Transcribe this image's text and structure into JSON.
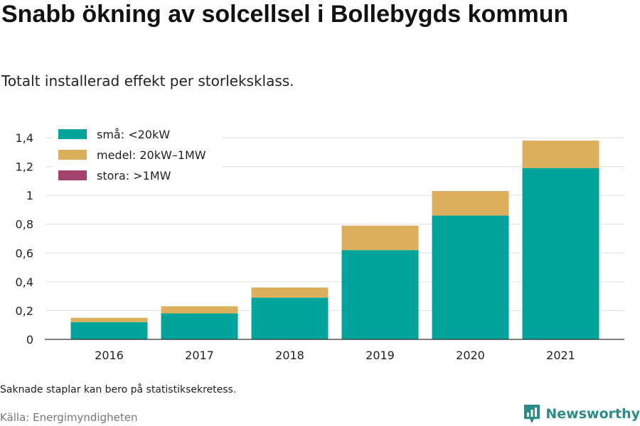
{
  "title": "Snabb ökning av solcellsel i Bollebygds kommun",
  "subtitle": "Totalt installerad effekt per storleksklass.",
  "note": "Saknade staplar kan bero på statistiksekretess.",
  "source": "Källa: Energimyndigheten",
  "brand": {
    "name": "Newsworthy",
    "icon": "newsworthy-logo-icon"
  },
  "colors": {
    "small": "#00a49a",
    "medium": "#dcaf5c",
    "large": "#a6426e",
    "grid": "#dddddd",
    "axis": "#333333"
  },
  "chart_data": {
    "type": "bar",
    "stacked": true,
    "categories": [
      "2016",
      "2017",
      "2018",
      "2019",
      "2020",
      "2021"
    ],
    "series": [
      {
        "name": "små: <20kW",
        "color": "#00a49a",
        "values": [
          0.12,
          0.18,
          0.29,
          0.62,
          0.86,
          1.19
        ]
      },
      {
        "name": "medel: 20kW–1MW",
        "color": "#dcaf5c",
        "values": [
          0.03,
          0.05,
          0.07,
          0.17,
          0.17,
          0.19
        ]
      },
      {
        "name": "stora: >1MW",
        "color": "#a6426e",
        "values": [
          0,
          0,
          0,
          0,
          0,
          0
        ]
      }
    ],
    "yticks": [
      {
        "value": 0,
        "label": "0"
      },
      {
        "value": 0.2,
        "label": "0,2"
      },
      {
        "value": 0.4,
        "label": "0,4"
      },
      {
        "value": 0.6,
        "label": "0,6"
      },
      {
        "value": 0.8,
        "label": "0,8"
      },
      {
        "value": 1.0,
        "label": "1"
      },
      {
        "value": 1.2,
        "label": "1,2"
      },
      {
        "value": 1.4,
        "label": "1,4"
      }
    ],
    "ylim": [
      0,
      1.42
    ],
    "grid": true,
    "legend_position": "top-left"
  }
}
